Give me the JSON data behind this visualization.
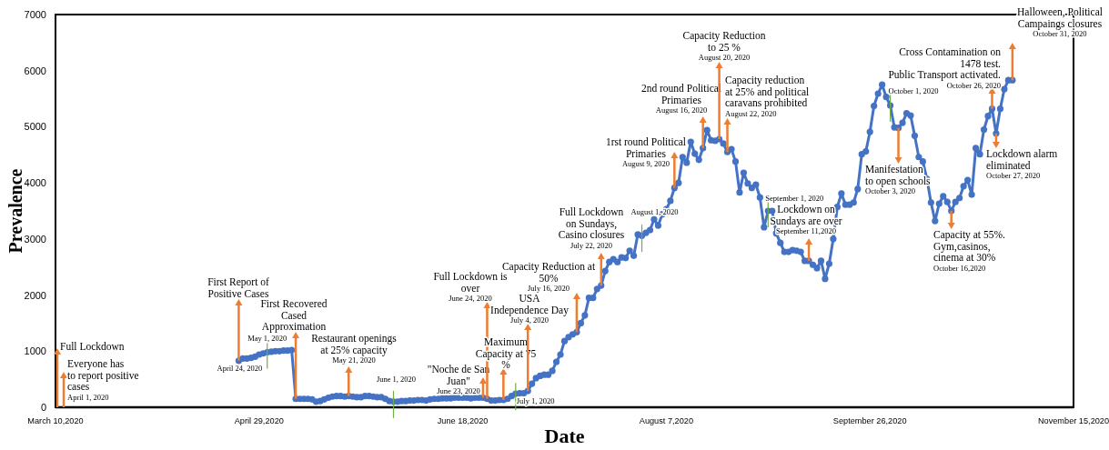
{
  "chart_data": {
    "type": "line",
    "xlabel": "Date",
    "ylabel": "Prevalence",
    "xlim": [
      "2020-03-10",
      "2020-11-15"
    ],
    "xticks": [
      {
        "value": "2020-03-10",
        "label": "March 10,2020"
      },
      {
        "value": "2020-04-29",
        "label": "April 29,2020"
      },
      {
        "value": "2020-06-18",
        "label": "June 18,2020"
      },
      {
        "value": "2020-08-07",
        "label": "August 7,2020"
      },
      {
        "value": "2020-09-26",
        "label": "September 26,2020"
      },
      {
        "value": "2020-11-15",
        "label": "November 15,2020"
      }
    ],
    "ylim": [
      0,
      7000
    ],
    "yticks": [
      0,
      1000,
      2000,
      3000,
      4000,
      5000,
      6000,
      7000
    ],
    "marker": "circle",
    "line_style": "solid",
    "x": [
      "2020-04-24",
      "2020-04-25",
      "2020-04-26",
      "2020-04-27",
      "2020-04-28",
      "2020-04-29",
      "2020-04-30",
      "2020-05-01",
      "2020-05-02",
      "2020-05-03",
      "2020-05-04",
      "2020-05-05",
      "2020-05-06",
      "2020-05-07",
      "2020-05-08",
      "2020-05-09",
      "2020-05-10",
      "2020-05-11",
      "2020-05-12",
      "2020-05-13",
      "2020-05-14",
      "2020-05-15",
      "2020-05-16",
      "2020-05-17",
      "2020-05-18",
      "2020-05-19",
      "2020-05-20",
      "2020-05-21",
      "2020-05-22",
      "2020-05-23",
      "2020-05-24",
      "2020-05-25",
      "2020-05-26",
      "2020-05-27",
      "2020-05-28",
      "2020-05-29",
      "2020-05-30",
      "2020-05-31",
      "2020-06-01",
      "2020-06-02",
      "2020-06-03",
      "2020-06-04",
      "2020-06-05",
      "2020-06-06",
      "2020-06-07",
      "2020-06-08",
      "2020-06-09",
      "2020-06-10",
      "2020-06-11",
      "2020-06-12",
      "2020-06-13",
      "2020-06-14",
      "2020-06-15",
      "2020-06-16",
      "2020-06-17",
      "2020-06-18",
      "2020-06-19",
      "2020-06-20",
      "2020-06-21",
      "2020-06-22",
      "2020-06-23",
      "2020-06-24",
      "2020-06-25",
      "2020-06-26",
      "2020-06-27",
      "2020-06-28",
      "2020-06-29",
      "2020-06-30",
      "2020-07-01",
      "2020-07-02",
      "2020-07-03",
      "2020-07-04",
      "2020-07-05",
      "2020-07-06",
      "2020-07-07",
      "2020-07-08",
      "2020-07-09",
      "2020-07-10",
      "2020-07-11",
      "2020-07-12",
      "2020-07-13",
      "2020-07-14",
      "2020-07-15",
      "2020-07-16",
      "2020-07-17",
      "2020-07-18",
      "2020-07-19",
      "2020-07-20",
      "2020-07-21",
      "2020-07-22",
      "2020-07-23",
      "2020-07-24",
      "2020-07-25",
      "2020-07-26",
      "2020-07-27",
      "2020-07-28",
      "2020-07-29",
      "2020-07-30",
      "2020-07-31",
      "2020-08-01",
      "2020-08-02",
      "2020-08-03",
      "2020-08-04",
      "2020-08-05",
      "2020-08-06",
      "2020-08-07",
      "2020-08-08",
      "2020-08-09",
      "2020-08-10",
      "2020-08-11",
      "2020-08-12",
      "2020-08-13",
      "2020-08-14",
      "2020-08-15",
      "2020-08-16",
      "2020-08-17",
      "2020-08-18",
      "2020-08-19",
      "2020-08-20",
      "2020-08-21",
      "2020-08-22",
      "2020-08-23",
      "2020-08-24",
      "2020-08-25",
      "2020-08-26",
      "2020-08-27",
      "2020-08-28",
      "2020-08-29",
      "2020-08-30",
      "2020-08-31",
      "2020-09-01",
      "2020-09-02",
      "2020-09-03",
      "2020-09-04",
      "2020-09-05",
      "2020-09-06",
      "2020-09-07",
      "2020-09-08",
      "2020-09-09",
      "2020-09-10",
      "2020-09-11",
      "2020-09-12",
      "2020-09-13",
      "2020-09-14",
      "2020-09-15",
      "2020-09-16",
      "2020-09-17",
      "2020-09-18",
      "2020-09-19",
      "2020-09-20",
      "2020-09-21",
      "2020-09-22",
      "2020-09-23",
      "2020-09-24",
      "2020-09-25",
      "2020-09-26",
      "2020-09-27",
      "2020-09-28",
      "2020-09-29",
      "2020-09-30",
      "2020-10-01",
      "2020-10-02",
      "2020-10-03",
      "2020-10-04",
      "2020-10-05",
      "2020-10-06",
      "2020-10-07",
      "2020-10-08",
      "2020-10-09",
      "2020-10-10",
      "2020-10-11",
      "2020-10-12",
      "2020-10-13",
      "2020-10-14",
      "2020-10-15",
      "2020-10-16",
      "2020-10-17",
      "2020-10-18",
      "2020-10-19",
      "2020-10-20",
      "2020-10-21",
      "2020-10-22",
      "2020-10-23",
      "2020-10-24",
      "2020-10-25",
      "2020-10-26",
      "2020-10-27",
      "2020-10-28",
      "2020-10-29",
      "2020-10-30",
      "2020-10-31"
    ],
    "series": [
      {
        "color": "#4472c4",
        "values": [
          830,
          870,
          870,
          880,
          900,
          940,
          960,
          980,
          990,
          1000,
          1000,
          1010,
          1010,
          1020,
          150,
          150,
          150,
          150,
          140,
          100,
          110,
          140,
          170,
          190,
          200,
          200,
          190,
          200,
          190,
          180,
          180,
          200,
          200,
          190,
          180,
          180,
          150,
          110,
          100,
          100,
          110,
          110,
          120,
          120,
          130,
          130,
          120,
          140,
          150,
          150,
          160,
          160,
          160,
          170,
          170,
          170,
          170,
          160,
          170,
          170,
          170,
          150,
          120,
          120,
          130,
          130,
          150,
          200,
          240,
          250,
          250,
          290,
          420,
          520,
          560,
          580,
          580,
          650,
          810,
          940,
          1180,
          1250,
          1300,
          1340,
          1500,
          1640,
          1950,
          1950,
          2110,
          2170,
          2430,
          2590,
          2640,
          2590,
          2670,
          2660,
          2790,
          2700,
          3080,
          3060,
          3110,
          3160,
          3350,
          3240,
          3440,
          3530,
          3680,
          3910,
          4000,
          4460,
          4360,
          4730,
          4520,
          4410,
          4620,
          4940,
          4760,
          4750,
          4780,
          4700,
          4550,
          4600,
          4380,
          3830,
          4180,
          3990,
          3910,
          3970,
          3740,
          3210,
          3500,
          3500,
          3100,
          2930,
          2770,
          2770,
          2800,
          2790,
          2770,
          2610,
          2610,
          2540,
          2480,
          2610,
          2290,
          2560,
          3000,
          3570,
          3810,
          3610,
          3610,
          3650,
          3890,
          4510,
          4560,
          4910,
          5370,
          5590,
          5750,
          5530,
          5380,
          4990,
          4980,
          5070,
          5240,
          5200,
          4840,
          4460,
          4380,
          4070,
          3650,
          3320,
          3630,
          3760,
          3660,
          3500,
          3660,
          3730,
          3940,
          4050,
          3790,
          4620,
          4510,
          4950,
          5190,
          5320,
          4880,
          5320,
          5670,
          5830,
          5830
        ]
      }
    ],
    "ref_lines": [
      {
        "axis": "x",
        "value": "2020-05-01",
        "label": "May 1, 2020",
        "color": "#70ad47"
      },
      {
        "axis": "x",
        "value": "2020-06-01",
        "label": "June 1, 2020",
        "color": "#70ad47"
      },
      {
        "axis": "x",
        "value": "2020-07-01",
        "label": "July 1, 2020",
        "color": "#70ad47"
      },
      {
        "axis": "x",
        "value": "2020-08-01",
        "label": "August 1, 2020",
        "color": "#70ad47"
      },
      {
        "axis": "x",
        "value": "2020-09-01",
        "label": "September 1, 2020",
        "color": "#70ad47"
      },
      {
        "axis": "x",
        "value": "2020-10-01",
        "label": "October 1, 2020",
        "color": "#70ad47"
      }
    ],
    "annotations": [
      "Full Lockdown",
      "Everyone has\nto report positive\ncases\nApril 1, 2020",
      {
        "text": "First Report of\nPositive Cases",
        "x": "2020-04-24",
        "y": 830
      },
      {
        "text": "April 24, 2020",
        "x": "2020-04-24",
        "y": 830
      },
      {
        "text": "First Recovered\nCased\nApproximation",
        "x": "2020-05-08",
        "y": 150
      },
      {
        "text": "Restaurant openings\nat 25% capacity\nMay 21, 2020",
        "x": "2020-05-21",
        "y": 200
      },
      {
        "text": "\"Noche de San\nJuan\"\nJune 23, 2020",
        "x": "2020-06-23",
        "y": 170
      },
      {
        "text": "Full Lockdown is\nover\nJune 24, 2020",
        "x": "2020-06-24",
        "y": 150
      },
      {
        "text": "Maximum\nCapacity at 75\n%",
        "x": "2020-06-28",
        "y": 130
      },
      {
        "text": "USA\nIndependence Day\nJuly 4, 2020",
        "x": "2020-07-04",
        "y": 290
      },
      {
        "text": "Capacity Reduction at\n50%\nJuly 16, 2020",
        "x": "2020-07-16",
        "y": 1340
      },
      {
        "text": "Full Lockdown\non Sundays,\nCasino closures\nJuly 22, 2020",
        "x": "2020-07-22",
        "y": 2170
      },
      {
        "text": "1rst round Political\nPrimaries\nAugust 9, 2020",
        "x": "2020-08-09",
        "y": 3910
      },
      {
        "text": "2nd round Political\nPrimaries\nAugust 16, 2020",
        "x": "2020-08-16",
        "y": 4620
      },
      {
        "text": "Capacity Reduction\nto 25 %\nAugust 20, 2020",
        "x": "2020-08-20",
        "y": 4780
      },
      {
        "text": "Capacity reduction\nat 25% and political\ncaravans prohibited\nAugust 22, 2020",
        "x": "2020-08-22",
        "y": 4550
      },
      {
        "text": "Lockdown on\nSundays are over\nSeptember 11,2020",
        "x": "2020-09-11",
        "y": 2610
      },
      {
        "text": "Manifestation\nto open schools\nOctober 3, 2020",
        "x": "2020-10-03",
        "y": 4980
      },
      {
        "text": "Capacity at 55%.\nGym,casinos,\ncinema at 30%\nOctober 16,2020",
        "x": "2020-10-16",
        "y": 3500
      },
      {
        "text": "Cross Contamination on\n1478 test.\nPublic Transport activated.\nOctober 26, 2020",
        "x": "2020-10-26",
        "y": 5320
      },
      {
        "text": "Lockdown alarm\neliminated\nOctober 27, 2020",
        "x": "2020-10-27",
        "y": 4880
      },
      {
        "text": "Halloween, Political\nCampaings closures\nOctober 31, 2020",
        "x": "2020-10-31",
        "y": 5830
      }
    ]
  }
}
